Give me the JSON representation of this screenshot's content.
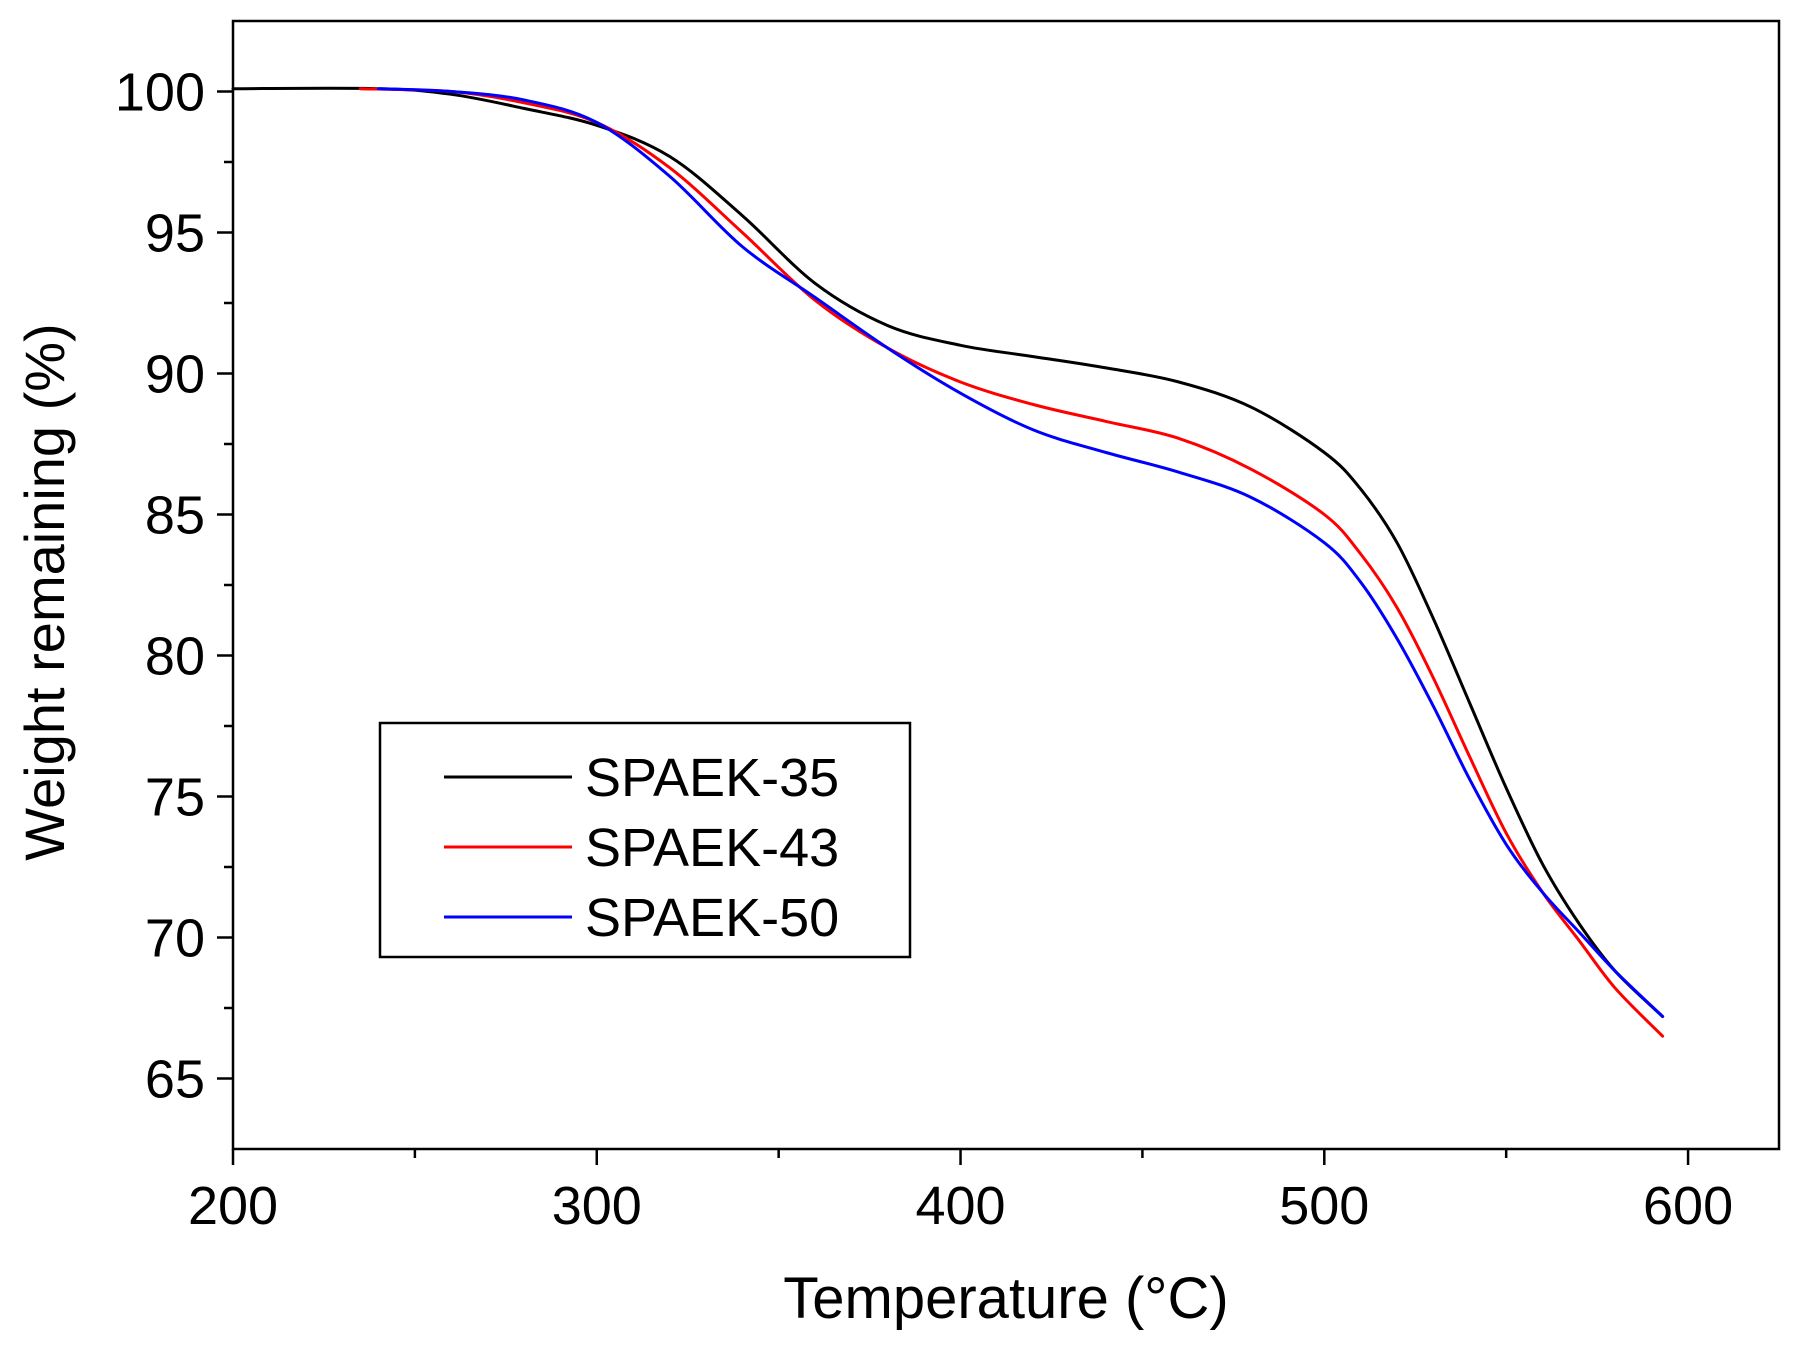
{
  "chart_data": {
    "type": "line",
    "title": "",
    "xlabel": "Temperature (°C)",
    "ylabel": "Weight remaining (%)",
    "xlim": [
      200,
      625
    ],
    "ylim": [
      62.5,
      102.5
    ],
    "xticks": [
      200,
      300,
      400,
      500,
      600
    ],
    "xtick_labels": [
      "200",
      "300",
      "400",
      "500",
      "600"
    ],
    "xminor": [
      250,
      350,
      450,
      550
    ],
    "yticks": [
      65,
      70,
      75,
      80,
      85,
      90,
      95,
      100
    ],
    "ytick_labels": [
      "65",
      "70",
      "75",
      "80",
      "85",
      "90",
      "95",
      "100"
    ],
    "yminor": [
      67.5,
      72.5,
      77.5,
      82.5,
      87.5,
      92.5,
      97.5
    ],
    "grid": false,
    "legend_position": "center-left",
    "series": [
      {
        "name": "SPAEK-35",
        "color": "#000000",
        "x": [
          200,
          240,
          260,
          280,
          300,
          320,
          340,
          360,
          380,
          400,
          420,
          440,
          460,
          480,
          500,
          510,
          520,
          530,
          540,
          550,
          560,
          570,
          580,
          593
        ],
        "y": [
          100.1,
          100.1,
          99.9,
          99.4,
          98.8,
          97.7,
          95.6,
          93.2,
          91.7,
          91.0,
          90.6,
          90.2,
          89.7,
          88.8,
          87.2,
          85.9,
          84.0,
          81.3,
          78.3,
          75.3,
          72.6,
          70.5,
          68.8,
          67.2
        ]
      },
      {
        "name": "SPAEK-43",
        "color": "#ff0000",
        "x": [
          235,
          260,
          280,
          300,
          320,
          340,
          360,
          380,
          400,
          420,
          440,
          460,
          480,
          500,
          510,
          520,
          530,
          540,
          550,
          560,
          570,
          580,
          593
        ],
        "y": [
          100.1,
          100.0,
          99.6,
          98.9,
          97.3,
          95.0,
          92.6,
          90.9,
          89.7,
          88.9,
          88.3,
          87.7,
          86.6,
          85.0,
          83.6,
          81.7,
          79.2,
          76.4,
          73.7,
          71.6,
          69.9,
          68.2,
          66.5
        ]
      },
      {
        "name": "SPAEK-50",
        "color": "#0000ff",
        "x": [
          240,
          260,
          280,
          300,
          320,
          340,
          360,
          380,
          400,
          420,
          440,
          460,
          480,
          500,
          510,
          520,
          530,
          540,
          550,
          560,
          570,
          580,
          593
        ],
        "y": [
          100.1,
          100.0,
          99.7,
          98.9,
          97.0,
          94.5,
          92.7,
          90.9,
          89.3,
          88.0,
          87.2,
          86.5,
          85.6,
          84.0,
          82.6,
          80.6,
          78.2,
          75.6,
          73.3,
          71.6,
          70.2,
          68.8,
          67.2
        ]
      }
    ]
  }
}
